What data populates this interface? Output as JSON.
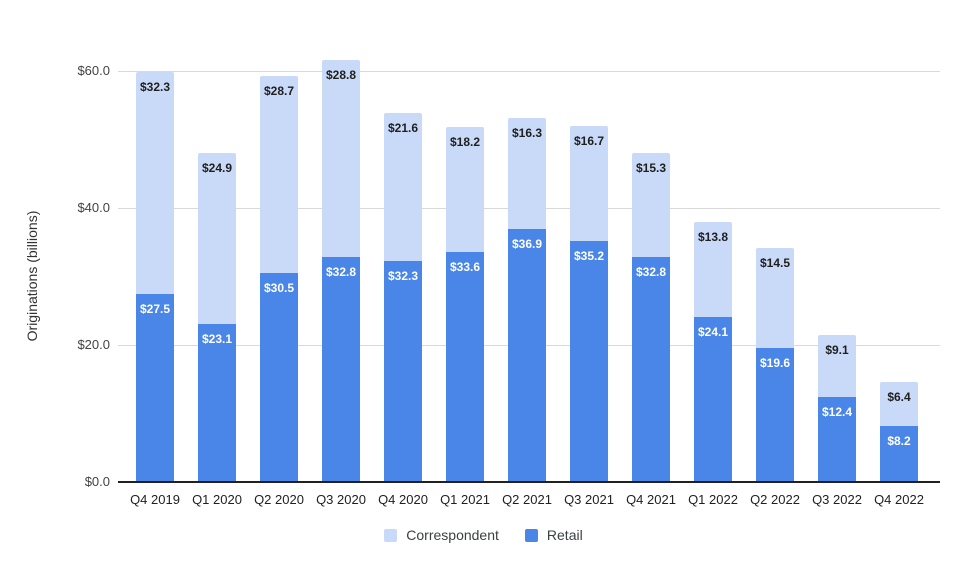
{
  "chart_data": {
    "type": "bar",
    "stacked": true,
    "title": "",
    "xlabel": "",
    "ylabel": "Originations (billions)",
    "ylim": [
      0,
      60
    ],
    "grid": true,
    "legend_position": "bottom-center",
    "value_prefix": "$",
    "categories": [
      "Q4 2019",
      "Q1 2020",
      "Q2 2020",
      "Q3 2020",
      "Q4 2020",
      "Q1 2021",
      "Q2 2021",
      "Q3 2021",
      "Q4 2021",
      "Q1 2022",
      "Q2 2022",
      "Q3 2022",
      "Q4 2022"
    ],
    "series": [
      {
        "name": "Correspondent",
        "stack_position": "top",
        "color": "#c9daf8",
        "label_color": "#1f1f1f",
        "values": [
          32.3,
          24.9,
          28.7,
          28.8,
          21.6,
          18.2,
          16.3,
          16.7,
          15.3,
          13.8,
          14.5,
          9.1,
          6.4
        ],
        "labels": [
          "$32.3",
          "$24.9",
          "$28.7",
          "$28.8",
          "$21.6",
          "$18.2",
          "$16.3",
          "$16.7",
          "$15.3",
          "$13.8",
          "$14.5",
          "$9.1",
          "$6.4"
        ]
      },
      {
        "name": "Retail",
        "stack_position": "bottom",
        "color": "#4a85e8",
        "label_color": "#ffffff",
        "values": [
          27.5,
          23.1,
          30.5,
          32.8,
          32.3,
          33.6,
          36.9,
          35.2,
          32.8,
          24.1,
          19.6,
          12.4,
          8.2
        ],
        "labels": [
          "$27.5",
          "$23.1",
          "$30.5",
          "$32.8",
          "$32.3",
          "$33.6",
          "$36.9",
          "$35.2",
          "$32.8",
          "$24.1",
          "$19.6",
          "$12.4",
          "$8.2"
        ]
      }
    ],
    "y_ticks": [
      {
        "value": 0,
        "label": "$0.0"
      },
      {
        "value": 20,
        "label": "$20.0"
      },
      {
        "value": 40,
        "label": "$40.0"
      },
      {
        "value": 60,
        "label": "$60.0"
      }
    ],
    "colors": {
      "background": "#ffffff",
      "gridline": "#d9d9d9",
      "baseline": "#212121",
      "tick_text": "#424242",
      "category_text": "#202124",
      "axis_title_text": "#333333",
      "legend_text": "#3c4043"
    }
  }
}
